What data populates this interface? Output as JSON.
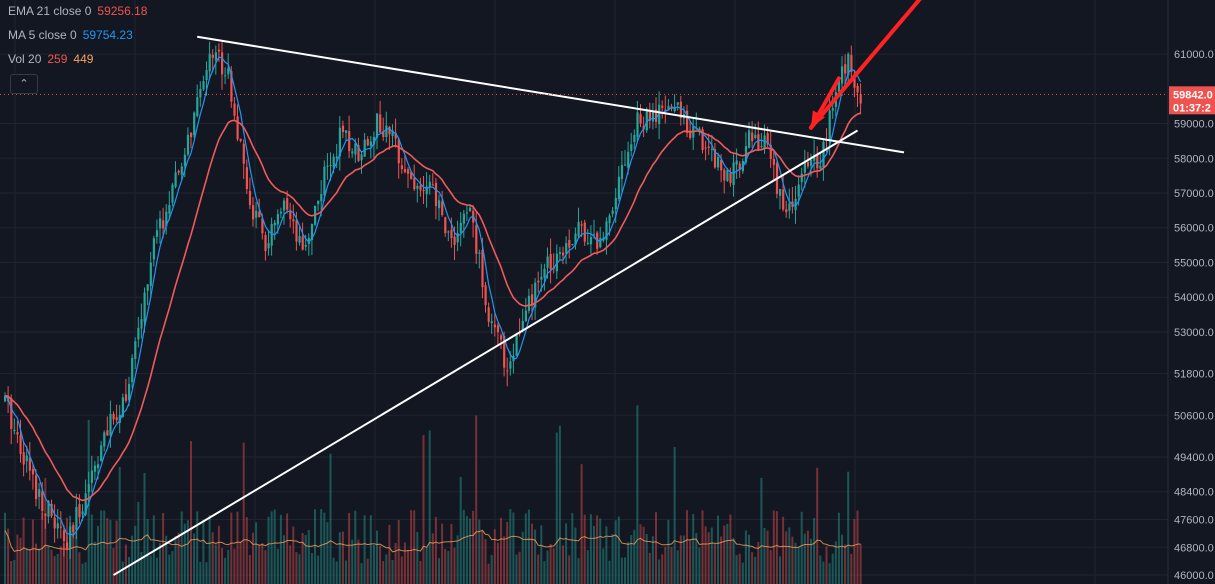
{
  "legend": {
    "ema": {
      "label": "EMA 21 close 0",
      "value": "59256.18",
      "color": "#ef5350"
    },
    "ma": {
      "label": "MA 5 close 0",
      "value": "59754.23",
      "color": "#2196f3"
    },
    "vol": {
      "label": "Vol 20",
      "value1": "259",
      "value2": "449",
      "color1": "#ef5350",
      "color2": "#f7a35c"
    }
  },
  "price_axis": {
    "ticks": [
      "61000.0",
      "59000.0",
      "58000.0",
      "57000.0",
      "56000.0",
      "55000.0",
      "54000.0",
      "53000.0",
      "51800.0",
      "50600.0",
      "49400.0",
      "48400.0",
      "47600.0",
      "46800.0",
      "46000.0"
    ],
    "last_price": "59842.0",
    "countdown": "01:37:2"
  },
  "colors": {
    "background": "#131722",
    "grid": "#1f2430",
    "up": "#26a69a",
    "down": "#ef5350",
    "ema": "#f05a5a",
    "ma": "#2196f3",
    "volume_ma": "#f7a35c",
    "trendline": "#ffffff",
    "arrow": "#ff2222"
  },
  "chart_data": {
    "type": "candlestick",
    "y_axis": "price",
    "ylim": [
      45800,
      62500
    ],
    "grid": true,
    "price_anchors": [
      [
        0,
        51000
      ],
      [
        10,
        48500
      ],
      [
        20,
        46800
      ],
      [
        30,
        49500
      ],
      [
        40,
        51500
      ],
      [
        48,
        55500
      ],
      [
        56,
        57500
      ],
      [
        63,
        59800
      ],
      [
        66,
        61200
      ],
      [
        72,
        60500
      ],
      [
        78,
        57000
      ],
      [
        84,
        55500
      ],
      [
        90,
        56500
      ],
      [
        96,
        55200
      ],
      [
        102,
        57200
      ],
      [
        108,
        58600
      ],
      [
        114,
        58200
      ],
      [
        120,
        59000
      ],
      [
        126,
        58400
      ],
      [
        132,
        57200
      ],
      [
        138,
        57000
      ],
      [
        144,
        55600
      ],
      [
        150,
        56500
      ],
      [
        156,
        53500
      ],
      [
        162,
        52000
      ],
      [
        168,
        53500
      ],
      [
        174,
        54800
      ],
      [
        180,
        55500
      ],
      [
        186,
        56000
      ],
      [
        192,
        55500
      ],
      [
        198,
        57500
      ],
      [
        204,
        59000
      ],
      [
        210,
        59200
      ],
      [
        216,
        59500
      ],
      [
        222,
        58800
      ],
      [
        228,
        58200
      ],
      [
        234,
        57300
      ],
      [
        240,
        58700
      ],
      [
        246,
        58300
      ],
      [
        252,
        56300
      ],
      [
        258,
        57600
      ],
      [
        264,
        58200
      ],
      [
        268,
        60000
      ],
      [
        272,
        60800
      ],
      [
        276,
        59900
      ]
    ],
    "trendlines": [
      {
        "from": [
          62,
          61500
        ],
        "to": [
          290,
          58170
        ]
      },
      {
        "from": [
          35,
          46000
        ],
        "to": [
          275,
          58800
        ]
      }
    ],
    "projection_arrows": [
      {
        "from": [
          269,
          60300
        ],
        "to": [
          260,
          58880
        ]
      },
      {
        "from": [
          260,
          58880
        ],
        "to": [
          300,
          63100
        ]
      }
    ]
  }
}
